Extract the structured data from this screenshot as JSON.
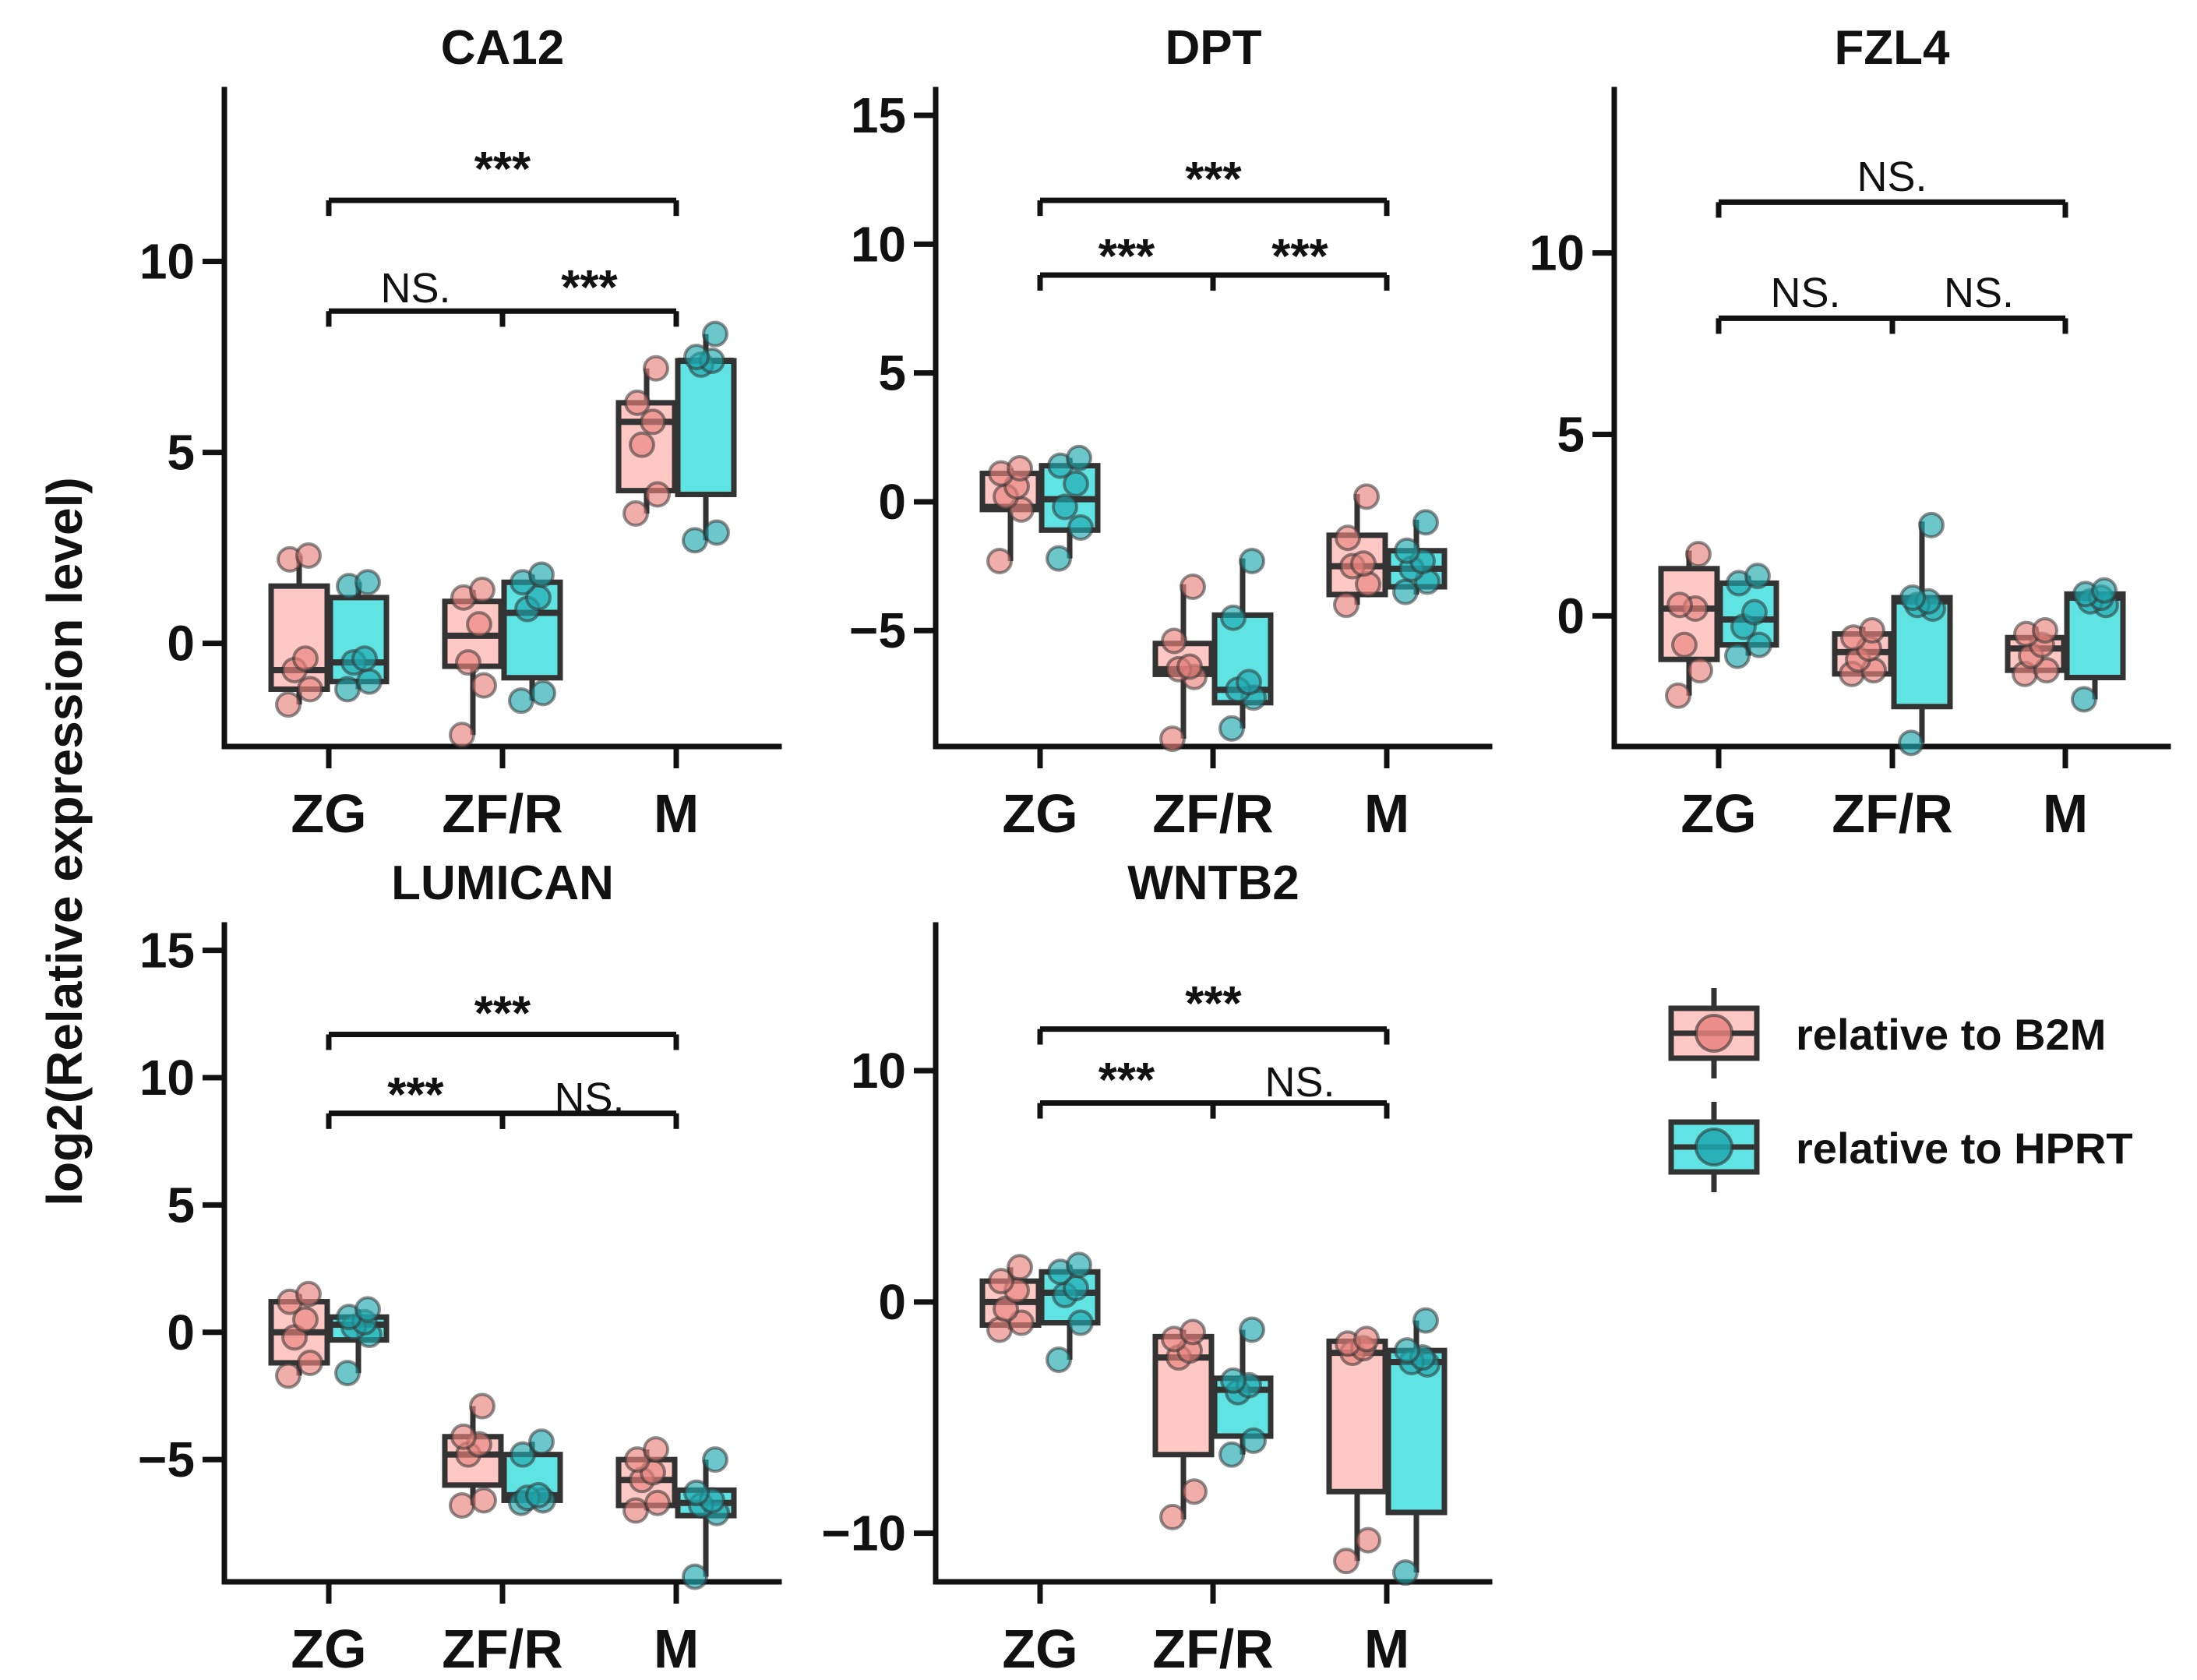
{
  "figure": {
    "ylabel": "log2(Relative expression level)",
    "colors": {
      "b2m_fill": "#ffc8c5",
      "b2m_dot": "#e8837c",
      "hprt_fill": "#5fe3e3",
      "hprt_dot": "#1fa8ae",
      "line": "#333333"
    },
    "legend": [
      {
        "name": "relative to B2M",
        "key": "b2m"
      },
      {
        "name": "relative to HPRT",
        "key": "hprt"
      }
    ]
  },
  "chart_data": [
    {
      "type": "box",
      "title": "CA12",
      "categories": [
        "ZG",
        "ZF/R",
        "M"
      ],
      "yticks": [
        {
          "v": 0,
          "label": "0"
        },
        {
          "v": 5,
          "label": "5"
        },
        {
          "v": 10,
          "label": "10"
        }
      ],
      "ylim": [
        -2.7,
        14.5
      ],
      "series": [
        {
          "name": "relative to B2M",
          "key": "b2m",
          "boxes": [
            {
              "min": -1.6,
              "q1": -1.2,
              "med": -0.7,
              "q3": 1.5,
              "max": 2.3,
              "points": [
                -1.6,
                -1.2,
                -0.7,
                -0.4,
                2.2,
                2.3
              ]
            },
            {
              "min": -2.4,
              "q1": -0.6,
              "med": 0.2,
              "q3": 1.1,
              "max": 1.4,
              "points": [
                -2.4,
                -1.1,
                -0.5,
                0.5,
                1.2,
                1.4
              ]
            },
            {
              "min": 3.4,
              "q1": 4.0,
              "med": 5.8,
              "q3": 6.3,
              "max": 7.2,
              "points": [
                3.4,
                3.9,
                5.2,
                5.8,
                6.3,
                7.2
              ]
            }
          ]
        },
        {
          "name": "relative to HPRT",
          "key": "hprt",
          "boxes": [
            {
              "min": -1.2,
              "q1": -1.0,
              "med": -0.5,
              "q3": 1.2,
              "max": 1.6,
              "points": [
                -1.2,
                -1.0,
                -0.5,
                -0.4,
                1.5,
                1.6
              ]
            },
            {
              "min": -1.5,
              "q1": -0.9,
              "med": 0.8,
              "q3": 1.6,
              "max": 1.8,
              "points": [
                -1.5,
                -1.3,
                0.9,
                1.2,
                1.6,
                1.8
              ]
            },
            {
              "min": 2.7,
              "q1": 3.9,
              "med": 7.4,
              "q3": 7.4,
              "max": 8.1,
              "points": [
                2.7,
                2.9,
                7.3,
                7.4,
                7.5,
                8.1
              ]
            }
          ]
        }
      ],
      "comparisons": [
        {
          "from": 0,
          "to": 2,
          "label": "***",
          "y": 11.6,
          "labelY": 12.6
        },
        {
          "from": 0,
          "to": 1,
          "label": "NS.",
          "y": 8.7,
          "labelY": 9.3,
          "mid": true
        },
        {
          "from": 1,
          "to": 2,
          "label": "***",
          "y": 8.7,
          "labelY": 9.5,
          "mid": true
        }
      ]
    },
    {
      "type": "box",
      "title": "DPT",
      "categories": [
        "ZG",
        "ZF/R",
        "M"
      ],
      "yticks": [
        {
          "v": -5,
          "label": "−5"
        },
        {
          "v": 0,
          "label": "0"
        },
        {
          "v": 5,
          "label": "5"
        },
        {
          "v": 10,
          "label": "10"
        },
        {
          "v": 15,
          "label": "15"
        }
      ],
      "ylim": [
        -9.5,
        16
      ],
      "series": [
        {
          "name": "relative to B2M",
          "key": "b2m",
          "boxes": [
            {
              "min": -2.3,
              "q1": -0.3,
              "med": -0.2,
              "q3": 1.1,
              "max": 1.3,
              "points": [
                -2.3,
                -0.3,
                0.2,
                0.6,
                1.1,
                1.3
              ]
            },
            {
              "min": -9.2,
              "q1": -6.7,
              "med": -6.5,
              "q3": -5.5,
              "max": -3.2,
              "points": [
                -9.2,
                -6.8,
                -6.5,
                -6.4,
                -5.4,
                -3.3
              ]
            },
            {
              "min": -4.0,
              "q1": -3.6,
              "med": -2.5,
              "q3": -1.3,
              "max": 0.3,
              "points": [
                -4.0,
                -3.2,
                -2.5,
                -2.4,
                -1.4,
                0.2
              ]
            }
          ]
        },
        {
          "name": "relative to HPRT",
          "key": "hprt",
          "boxes": [
            {
              "min": -2.2,
              "q1": -1.1,
              "med": 0.1,
              "q3": 1.4,
              "max": 1.7,
              "points": [
                -2.2,
                -1.0,
                -0.2,
                0.7,
                1.4,
                1.7
              ]
            },
            {
              "min": -8.8,
              "q1": -7.8,
              "med": -7.3,
              "q3": -4.4,
              "max": -2.2,
              "points": [
                -8.8,
                -7.6,
                -7.3,
                -7.0,
                -4.5,
                -2.3
              ]
            },
            {
              "min": -3.6,
              "q1": -3.3,
              "med": -2.6,
              "q3": -1.9,
              "max": -0.7,
              "points": [
                -3.5,
                -3.1,
                -2.6,
                -2.3,
                -1.9,
                -0.8
              ]
            }
          ]
        }
      ],
      "comparisons": [
        {
          "from": 0,
          "to": 2,
          "label": "***",
          "y": 11.7,
          "labelY": 12.8
        },
        {
          "from": 0,
          "to": 1,
          "label": "***",
          "y": 8.8,
          "labelY": 9.8,
          "mid": true
        },
        {
          "from": 1,
          "to": 2,
          "label": "***",
          "y": 8.8,
          "labelY": 9.8,
          "mid": true
        }
      ]
    },
    {
      "type": "box",
      "title": "FZL4",
      "categories": [
        "ZG",
        "ZF/R",
        "M"
      ],
      "yticks": [
        {
          "v": 0,
          "label": "0"
        },
        {
          "v": 5,
          "label": "5"
        },
        {
          "v": 10,
          "label": "10"
        }
      ],
      "ylim": [
        -3.6,
        14.5
      ],
      "series": [
        {
          "name": "relative to B2M",
          "key": "b2m",
          "boxes": [
            {
              "min": -2.2,
              "q1": -1.2,
              "med": 0.2,
              "q3": 1.3,
              "max": 1.8,
              "points": [
                -2.2,
                -1.5,
                -0.8,
                0.2,
                0.3,
                1.7
              ]
            },
            {
              "min": -1.6,
              "q1": -1.6,
              "med": -1.0,
              "q3": -0.5,
              "max": -0.3,
              "points": [
                -1.6,
                -1.5,
                -1.2,
                -0.9,
                -0.6,
                -0.4
              ]
            },
            {
              "min": -1.6,
              "q1": -1.5,
              "med": -0.9,
              "q3": -0.6,
              "max": -0.3,
              "points": [
                -1.6,
                -1.5,
                -1.1,
                -0.8,
                -0.5,
                -0.4
              ]
            }
          ]
        },
        {
          "name": "relative to HPRT",
          "key": "hprt",
          "boxes": [
            {
              "min": -1.1,
              "q1": -0.8,
              "med": -0.1,
              "q3": 0.9,
              "max": 1.1,
              "points": [
                -1.1,
                -0.8,
                -0.3,
                0.1,
                0.9,
                1.1
              ]
            },
            {
              "min": -3.5,
              "q1": -2.5,
              "med": 0.4,
              "q3": 0.5,
              "max": 2.6,
              "points": [
                -3.5,
                0.2,
                0.3,
                0.4,
                0.5,
                2.5
              ]
            },
            {
              "min": -2.3,
              "q1": -1.7,
              "med": 0.5,
              "q3": 0.6,
              "max": 0.7,
              "points": [
                -2.3,
                0.3,
                0.4,
                0.5,
                0.6,
                0.7
              ]
            }
          ]
        }
      ],
      "comparisons": [
        {
          "from": 0,
          "to": 2,
          "label": "NS.",
          "y": 11.4,
          "labelY": 12.1
        },
        {
          "from": 0,
          "to": 1,
          "label": "NS.",
          "y": 8.2,
          "labelY": 8.9,
          "mid": true
        },
        {
          "from": 1,
          "to": 2,
          "label": "NS.",
          "y": 8.2,
          "labelY": 8.9,
          "mid": true
        }
      ]
    },
    {
      "type": "box",
      "title": "LUMICAN",
      "categories": [
        "ZG",
        "ZF/R",
        "M"
      ],
      "yticks": [
        {
          "v": -5,
          "label": "−5"
        },
        {
          "v": 0,
          "label": "0"
        },
        {
          "v": 5,
          "label": "5"
        },
        {
          "v": 10,
          "label": "10"
        },
        {
          "v": 15,
          "label": "15"
        }
      ],
      "ylim": [
        -9.8,
        16
      ],
      "series": [
        {
          "name": "relative to B2M",
          "key": "b2m",
          "boxes": [
            {
              "min": -1.7,
              "q1": -1.2,
              "med": 0.0,
              "q3": 1.2,
              "max": 1.5,
              "points": [
                -1.7,
                -1.2,
                -0.2,
                0.5,
                1.2,
                1.5
              ]
            },
            {
              "min": -6.8,
              "q1": -6.0,
              "med": -4.8,
              "q3": -4.1,
              "max": -2.9,
              "points": [
                -6.8,
                -6.6,
                -4.8,
                -4.4,
                -4.1,
                -2.9
              ]
            },
            {
              "min": -7.0,
              "q1": -6.8,
              "med": -5.8,
              "q3": -5.0,
              "max": -4.6,
              "points": [
                -7.0,
                -6.7,
                -5.8,
                -5.5,
                -5.0,
                -4.6
              ]
            }
          ]
        },
        {
          "name": "relative to HPRT",
          "key": "hprt",
          "boxes": [
            {
              "min": -1.6,
              "q1": -0.3,
              "med": 0.3,
              "q3": 0.6,
              "max": 0.9,
              "points": [
                -1.6,
                -0.1,
                0.2,
                0.4,
                0.6,
                0.9
              ]
            },
            {
              "min": -6.7,
              "q1": -6.6,
              "med": -6.4,
              "q3": -4.8,
              "max": -4.3,
              "points": [
                -6.7,
                -6.6,
                -6.5,
                -6.4,
                -4.8,
                -4.3
              ]
            },
            {
              "min": -9.6,
              "q1": -7.2,
              "med": -6.7,
              "q3": -6.2,
              "max": -5.0,
              "points": [
                -9.6,
                -7.1,
                -6.8,
                -6.6,
                -6.3,
                -5.0
              ]
            }
          ]
        }
      ],
      "comparisons": [
        {
          "from": 0,
          "to": 2,
          "label": "***",
          "y": 11.7,
          "labelY": 12.8
        },
        {
          "from": 0,
          "to": 1,
          "label": "***",
          "y": 8.6,
          "labelY": 9.6,
          "mid": true
        },
        {
          "from": 1,
          "to": 2,
          "label": "NS.",
          "y": 8.6,
          "labelY": 9.2,
          "mid": true
        }
      ]
    },
    {
      "type": "box",
      "title": "WNTB2",
      "categories": [
        "ZG",
        "ZF/R",
        "M"
      ],
      "yticks": [
        {
          "v": -10,
          "label": "−10"
        },
        {
          "v": 0,
          "label": "0"
        },
        {
          "v": 10,
          "label": "10"
        }
      ],
      "ylim": [
        -12.1,
        16.3
      ],
      "series": [
        {
          "name": "relative to B2M",
          "key": "b2m",
          "boxes": [
            {
              "min": -1.2,
              "q1": -1.0,
              "med": 0.0,
              "q3": 0.9,
              "max": 1.5,
              "points": [
                -1.2,
                -0.9,
                -0.3,
                0.5,
                0.9,
                1.5
              ]
            },
            {
              "min": -9.4,
              "q1": -6.6,
              "med": -2.4,
              "q3": -1.5,
              "max": -1.2,
              "points": [
                -9.3,
                -8.2,
                -2.4,
                -2.1,
                -1.6,
                -1.3
              ]
            },
            {
              "min": -11.2,
              "q1": -8.2,
              "med": -2.2,
              "q3": -1.7,
              "max": -1.6,
              "points": [
                -11.2,
                -10.3,
                -2.2,
                -2.0,
                -1.8,
                -1.6
              ]
            }
          ]
        },
        {
          "name": "relative to HPRT",
          "key": "hprt",
          "boxes": [
            {
              "min": -2.5,
              "q1": -0.9,
              "med": 0.4,
              "q3": 1.3,
              "max": 1.6,
              "points": [
                -2.5,
                -0.9,
                0.3,
                0.6,
                1.3,
                1.6
              ]
            },
            {
              "min": -6.6,
              "q1": -5.8,
              "med": -3.8,
              "q3": -3.3,
              "max": -1.2,
              "points": [
                -6.6,
                -6.0,
                -3.9,
                -3.6,
                -3.4,
                -1.2
              ]
            },
            {
              "min": -11.7,
              "q1": -9.1,
              "med": -2.6,
              "q3": -2.1,
              "max": -0.8,
              "points": [
                -11.7,
                -2.7,
                -2.6,
                -2.4,
                -2.1,
                -0.8
              ]
            }
          ]
        }
      ],
      "comparisons": [
        {
          "from": 0,
          "to": 2,
          "label": "***",
          "y": 11.8,
          "labelY": 13.2
        },
        {
          "from": 0,
          "to": 1,
          "label": "***",
          "y": 8.6,
          "labelY": 9.9,
          "mid": true
        },
        {
          "from": 1,
          "to": 2,
          "label": "NS.",
          "y": 8.6,
          "labelY": 9.5,
          "mid": true
        }
      ]
    }
  ]
}
